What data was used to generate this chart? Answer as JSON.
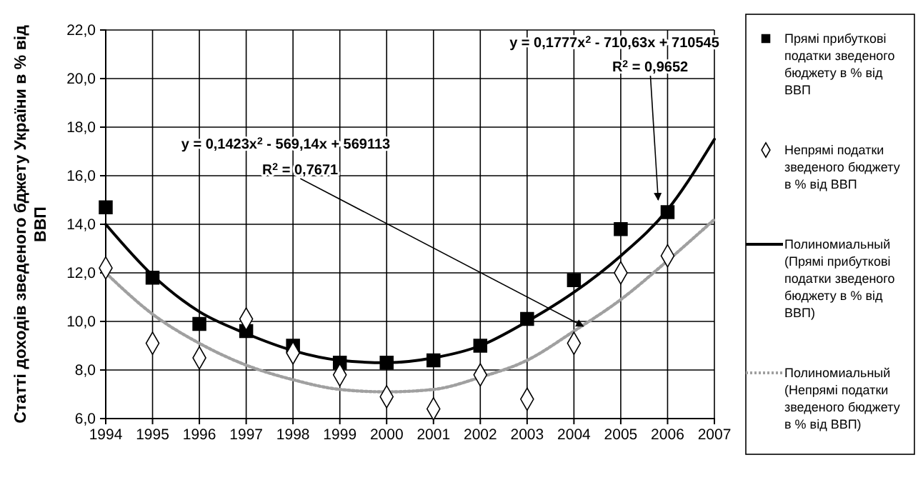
{
  "chart_data": {
    "type": "scatter",
    "ylabel": "Статті доходів зведеного бджету України в % від ВВП",
    "x": [
      1994,
      1995,
      1996,
      1997,
      1998,
      1999,
      2000,
      2001,
      2002,
      2003,
      2004,
      2005,
      2006
    ],
    "series": [
      {
        "name": "Прямі прибуткові податки зведеного бюджету в % від ВВП",
        "color": "#000000",
        "marker": "square",
        "values": [
          14.7,
          11.8,
          9.9,
          9.6,
          9.0,
          8.3,
          8.3,
          8.4,
          9.0,
          10.1,
          11.7,
          13.8,
          14.5
        ]
      },
      {
        "name": "Непрямі податки зведеного бюджету в % від ВВП",
        "color": "#ffffff",
        "marker": "diamond",
        "values": [
          12.2,
          9.1,
          8.5,
          10.1,
          8.7,
          7.8,
          6.9,
          6.4,
          7.8,
          6.8,
          9.1,
          12.0,
          12.7
        ]
      },
      {
        "name": "Полиномиальный (Прямі прибуткові податки зведеного бюджету в % від ВВП)",
        "type": "line",
        "color": "#000000",
        "line_style": "solid",
        "marker": "none",
        "x": [
          1994,
          1995,
          1996,
          1997,
          1998,
          1999,
          2000,
          2001,
          2002,
          2003,
          2004,
          2005,
          2006,
          2007
        ],
        "values": [
          14.0,
          11.9,
          10.4,
          9.5,
          8.8,
          8.4,
          8.3,
          8.5,
          9.0,
          10.0,
          11.2,
          12.7,
          14.6,
          17.5
        ]
      },
      {
        "name": "Полиномиальный (Непрямі податки зведеного бюджету в % від ВВП)",
        "type": "line",
        "color": "#a0a0a0",
        "line_style": "dotted",
        "marker": "none",
        "x": [
          1994,
          1995,
          1996,
          1997,
          1998,
          1999,
          2000,
          2001,
          2002,
          2003,
          2004,
          2005,
          2006,
          2007
        ],
        "values": [
          12.0,
          10.3,
          9.1,
          8.2,
          7.6,
          7.2,
          7.1,
          7.2,
          7.7,
          8.4,
          9.6,
          10.9,
          12.5,
          14.2
        ]
      }
    ],
    "xlim": [
      1994,
      2007
    ],
    "xticks": [
      1994,
      1995,
      1996,
      1997,
      1998,
      1999,
      2000,
      2001,
      2002,
      2003,
      2004,
      2005,
      2006,
      2007
    ],
    "ylim": [
      6,
      22
    ],
    "yticks": [
      {
        "value": 6,
        "label": "6,0"
      },
      {
        "value": 8,
        "label": "8,0"
      },
      {
        "value": 10,
        "label": "10,0"
      },
      {
        "value": 12,
        "label": "12,0"
      },
      {
        "value": 14,
        "label": "14,0"
      },
      {
        "value": 16,
        "label": "16,0"
      },
      {
        "value": 18,
        "label": "18,0"
      },
      {
        "value": 20,
        "label": "20,0"
      },
      {
        "value": 22,
        "label": "22,0"
      }
    ],
    "grid": true,
    "legend": "right",
    "annotations": [
      "y = 0,1777x$^{2}$ - 710,63x + 710545",
      {
        "text": "R$^{2}$ = 0,9652",
        "x": 2005.8,
        "y": 15.0
      },
      "y = 0,1423x$^{2}$ - 569,14x + 569113",
      {
        "text": "R$^{2}$ = 0,7671",
        "x": 2004.2,
        "y": 9.8
      }
    ]
  }
}
